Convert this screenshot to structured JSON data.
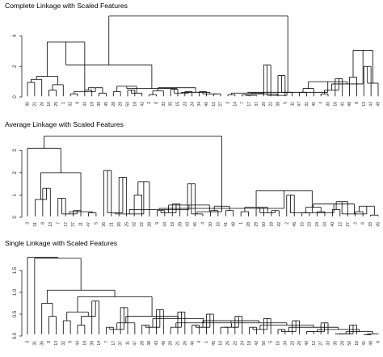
{
  "chart_data": [
    {
      "type": "dendrogram",
      "title": "Complete Linkage with Scaled Features",
      "ylim": [
        0,
        5.4
      ],
      "yticks": [
        "0",
        "2",
        "4"
      ],
      "ytick_values": [
        0,
        2,
        4
      ],
      "leaves": [
        "36",
        "21",
        "26",
        "10",
        "25",
        "1",
        "32",
        "9",
        "44",
        "19",
        "39",
        "45",
        "28",
        "29",
        "50",
        "18",
        "42",
        "2",
        "6",
        "33",
        "35",
        "15",
        "23",
        "24",
        "34",
        "40",
        "12",
        "27",
        "3",
        "14",
        "7",
        "17",
        "37",
        "20",
        "22",
        "38",
        "5",
        "11",
        "47",
        "31",
        "46",
        "4",
        "30",
        "16",
        "41",
        "48",
        "8",
        "13",
        "43",
        "49"
      ],
      "tree": [
        [
          [
            [
              [
                [
                  "36",
                  "21"
                ],
                "26"
              ],
              [
                [
                  "10",
                  "25"
                ],
                "1"
              ]
            ],
            [
              [
                "32",
                "9"
              ],
              [
                [
                  "44",
                  "19"
                ],
                [
                  "39",
                  "45"
                ]
              ]
            ]
          ],
          [
            [
              [
                "28",
                "29"
              ],
              [
                [
                  "50",
                  "18"
                ],
                "42"
              ]
            ],
            [
              [
                [
                  "2",
                  "6"
                ],
                "33"
              ],
              [
                [
                  [
                    "35",
                    "15"
                  ],
                  [
                    "23",
                    "24"
                  ]
                ],
                [
                  [
                    "34",
                    "40"
                  ],
                  [
                    "12",
                    "27"
                  ]
                ]
              ]
            ]
          ]
        ],
        [
          [
            [
              "3",
              "14"
            ],
            [
              [
                [
                  "7",
                  "17"
                ],
                "37"
              ],
              [
                [
                  "20",
                  "22"
                ],
                [
                  [
                    "38",
                    "5"
                  ],
                  "11"
                ]
              ]
            ]
          ],
          [
            [
              [
                "47",
                "31"
              ],
              "46"
            ],
            [
              [
                [
                  "4",
                  "30"
                ],
                [
                  "16",
                  "41"
                ]
              ],
              [
                [
                  "48",
                  "8"
                ],
                [
                  [
                    "13",
                    "43"
                  ],
                  "49"
                ]
              ]
            ]
          ]
        ]
      ],
      "heights": [
        5.3,
        2.1,
        3.6,
        1.35,
        1.15,
        0.95,
        0.8,
        0.45,
        0.35,
        0.2,
        0.6,
        0.45,
        0.25,
        0.55,
        0.7,
        0.35,
        0.25,
        0.45,
        0.6,
        0.4,
        0.15,
        0.3,
        0.25,
        0.5,
        0.35,
        0.2,
        0.35,
        0.2,
        0.3,
        0.25,
        0.15,
        0.2,
        0.1,
        0.15,
        0.1,
        2.1,
        0.3,
        1.4,
        1.0,
        0.55,
        0.3,
        0.85,
        0.45,
        0.2,
        1.2,
        3.05,
        1.3,
        0.9,
        2.0,
        1.05,
        0.55,
        0.35,
        0.45,
        0.95,
        0.5,
        0.7,
        0.45,
        0.4,
        0.3,
        0.2,
        0.15,
        0.35,
        0.2,
        0.1,
        0.1,
        0.05,
        0.05,
        0.03
      ]
    },
    {
      "type": "dendrogram",
      "title": "Average Linkage with Scaled Features",
      "ylim": [
        0,
        3.7
      ],
      "yticks": [
        "0",
        "1",
        "2",
        "3"
      ],
      "ytick_values": [
        0,
        1,
        2,
        3
      ],
      "leaves": [
        "3",
        "31",
        "8",
        "13",
        "7",
        "17",
        "37",
        "11",
        "47",
        "5",
        "36",
        "21",
        "26",
        "25",
        "32",
        "22",
        "28",
        "9",
        "44",
        "19",
        "39",
        "43",
        "46",
        "4",
        "30",
        "16",
        "41",
        "48",
        "1",
        "28",
        "29",
        "50",
        "18",
        "42",
        "2",
        "45",
        "15",
        "23",
        "24",
        "34",
        "40",
        "12",
        "27",
        "2",
        "6",
        "33",
        "35"
      ],
      "tree": [
        [
          "3",
          [
            [
              "31",
              [
                "8",
                "13"
              ]
            ],
            [
              [
                [
                  "7",
                  "17"
                ],
                [
                  "37",
                  "11"
                ]
              ],
              [
                "47",
                "5"
              ]
            ]
          ]
        ],
        [
          [
            [
              [
                [
                  "36",
                  "21"
                ],
                [
                  "26",
                  "25"
                ]
              ],
              [
                [
                  "32",
                  "22"
                ],
                "28"
              ]
            ],
            [
              [
                [
                  "9",
                  "44"
                ],
                [
                  "19",
                  "39"
                ]
              ],
              [
                [
                  [
                    "43",
                    "46"
                  ],
                  "4"
                ],
                [
                  [
                    "30",
                    "16"
                  ],
                  [
                    "41",
                    "48"
                  ]
                ]
              ]
            ]
          ],
          [
            [
              [
                "1",
                "28"
              ],
              [
                [
                  "29",
                  "50"
                ],
                [
                  "18",
                  "42"
                ]
              ]
            ],
            [
              [
                "2",
                "45"
              ],
              [
                [
                  [
                    "15",
                    "23"
                  ],
                  [
                    "24",
                    "34"
                  ]
                ],
                [
                  [
                    [
                      "40",
                      "12"
                    ],
                    "27"
                  ],
                  [
                    [
                      "2",
                      "6"
                    ],
                    [
                      "33",
                      "35"
                    ]
                  ]
                ]
              ]
            ]
          ]
        ]
      ],
      "heights": [
        3.65,
        3.1,
        2.0,
        0.8,
        1.3,
        0.25,
        0.15,
        0.85,
        0.3,
        0.2,
        0.4,
        0.35,
        0.15,
        0.2,
        2.1,
        1.8,
        1.6,
        1.0,
        0.55,
        0.2,
        0.3,
        0.6,
        0.25,
        0.15,
        1.5,
        0.5,
        0.3,
        0.3,
        1.2,
        0.45,
        0.25,
        0.2,
        0.4,
        0.3,
        0.2,
        1.0,
        0.6,
        0.45,
        0.2,
        0.25,
        0.15,
        0.7,
        0.35,
        0.5,
        0.25,
        0.1,
        0.15,
        0.35,
        0.2,
        0.15,
        0.1,
        0.1,
        0.05,
        0.05,
        0.03,
        0.03
      ]
    },
    {
      "type": "dendrogram",
      "title": "Single Linkage with Scaled Features",
      "ylim": [
        0,
        1.85
      ],
      "yticks": [
        "0.0",
        "0.5",
        "1.0",
        "1.5"
      ],
      "ytick_values": [
        0,
        0.5,
        1.0,
        1.5
      ],
      "leaves": [
        "3",
        "31",
        "36",
        "8",
        "13",
        "32",
        "9",
        "44",
        "19",
        "39",
        "14",
        "7",
        "17",
        "37",
        "11",
        "47",
        "28",
        "38",
        "43",
        "49",
        "29",
        "21",
        "26",
        "46",
        "4",
        "1",
        "45",
        "10",
        "25",
        "22",
        "24",
        "18",
        "42",
        "50",
        "5",
        "15",
        "34",
        "23",
        "20",
        "40",
        "12",
        "27",
        "33",
        "35",
        "29",
        "50",
        "16",
        "41",
        "48",
        "8"
      ],
      "tree": [
        "3",
        [
          "31",
          [
            [
              "36",
              [
                "8",
                "13"
              ]
            ],
            [
              [
                [
                  "32",
                  "9"
                ],
                [
                  [
                    "44",
                    "19"
                  ],
                  [
                    "39",
                    "14"
                  ]
                ]
              ],
              [
                [
                  [
                    [
                      "7",
                      "17"
                    ],
                    [
                      "37",
                      "11"
                    ]
                  ],
                  "47"
                ],
                [
                  [
                    [
                      "28",
                      "38"
                    ],
                    [
                      "43",
                      "49"
                    ]
                  ],
                  [
                    [
                      "29",
                      [
                        "21",
                        "26"
                      ]
                    ],
                    [
                      [
                        [
                          "46",
                          "4"
                        ],
                        [
                          "1",
                          "45"
                        ]
                      ],
                      [
                        [
                          [
                            "10",
                            "25"
                          ],
                          [
                            "22",
                            "24"
                          ]
                        ],
                        [
                          [
                            [
                              "18",
                              "42"
                            ],
                            [
                              "50",
                              "5"
                            ]
                          ],
                          [
                            [
                              [
                                "15",
                                "34"
                              ],
                              [
                                "23",
                                "20"
                              ]
                            ],
                            [
                              [
                                [
                                  "40",
                                  "12"
                                ],
                                [
                                  "27",
                                  "33"
                                ]
                              ],
                              [
                                [
                                  [
                                    "35",
                                    "29"
                                  ],
                                  [
                                    "50",
                                    "16"
                                  ]
                                ],
                                [
                                  [
                                    "41",
                                    "48"
                                  ],
                                  "8"
                                ]
                              ]
                            ]
                          ]
                        ]
                      ]
                    ]
                  ]
                ]
              ]
            ]
          ]
        ]
      ],
      "heights": [
        1.8,
        1.78,
        1.05,
        0.75,
        0.45,
        0.9,
        0.55,
        0.35,
        0.45,
        0.25,
        0.8,
        0.45,
        0.3,
        0.15,
        0.2,
        0.65,
        0.4,
        0.2,
        0.25,
        0.6,
        0.3,
        0.2,
        0.55,
        0.35,
        0.2,
        0.25,
        0.5,
        0.3,
        0.2,
        0.2,
        0.45,
        0.25,
        0.15,
        0.2,
        0.4,
        0.2,
        0.1,
        0.15,
        0.35,
        0.15,
        0.1,
        0.1,
        0.3,
        0.1,
        0.05,
        0.05,
        0.25,
        0.05,
        0.03
      ]
    }
  ]
}
